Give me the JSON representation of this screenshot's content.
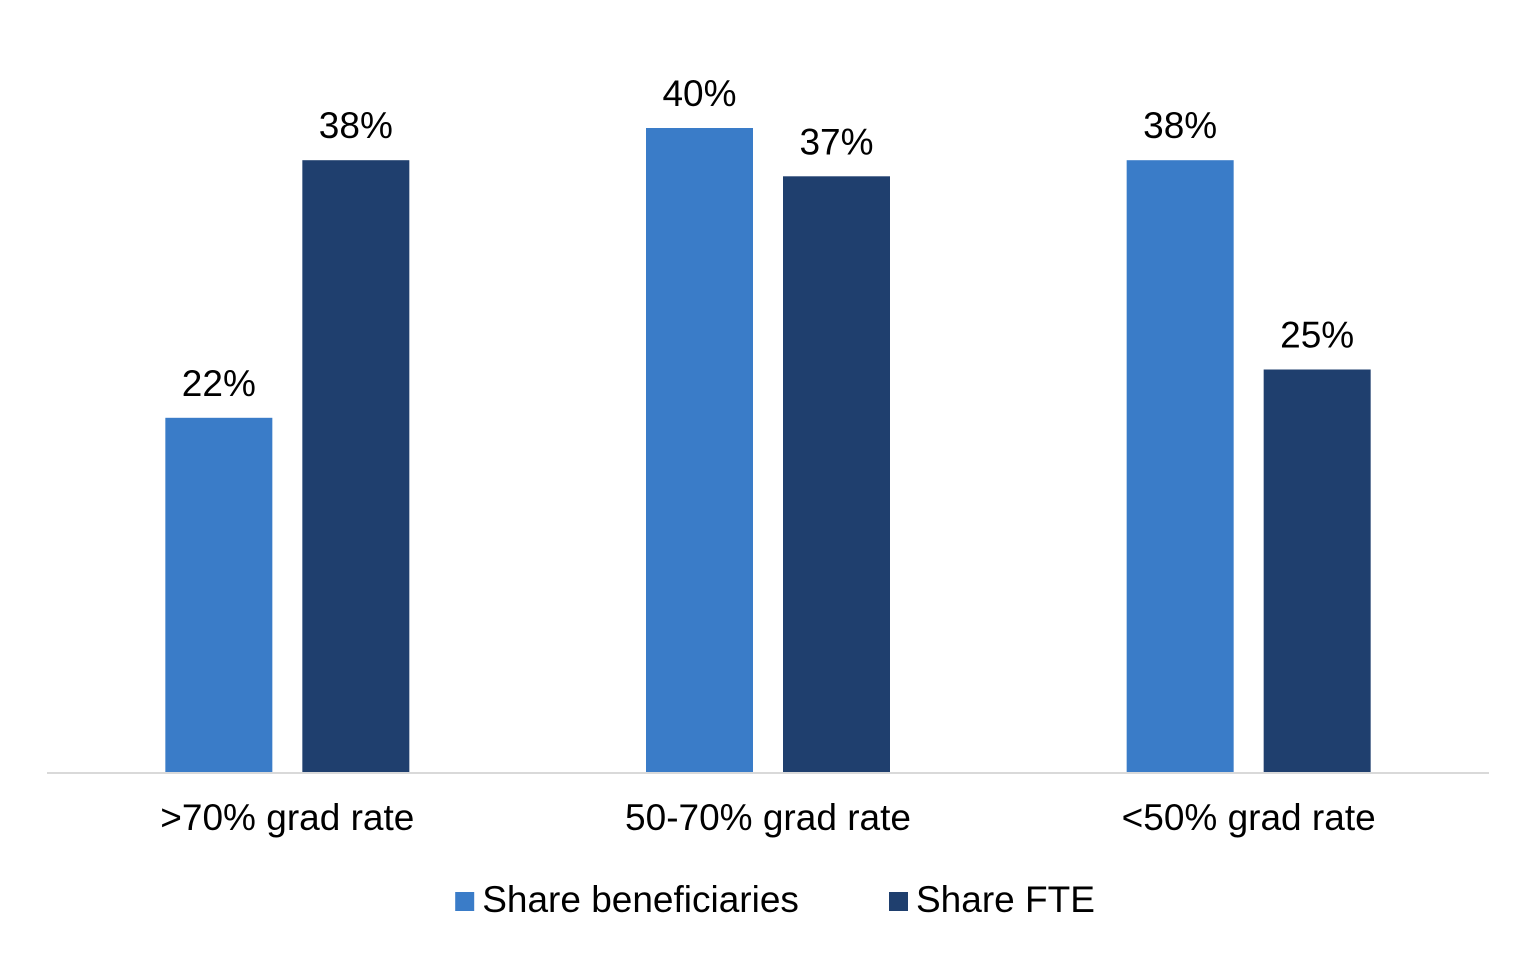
{
  "chart_data": {
    "type": "bar",
    "title": "",
    "xlabel": "",
    "ylabel": "",
    "ylim": [
      0,
      40
    ],
    "grid": false,
    "legend_position": "bottom",
    "categories": [
      ">70% grad rate",
      "50-70% grad rate",
      "<50% grad rate"
    ],
    "series": [
      {
        "name": "Share beneficiaries",
        "color": "#3A7CC8",
        "values": [
          22,
          40,
          38
        ],
        "data_labels": [
          "22%",
          "40%",
          "38%"
        ]
      },
      {
        "name": "Share FTE",
        "color": "#1F3F6E",
        "values": [
          38,
          37,
          25
        ],
        "data_labels": [
          "38%",
          "37%",
          "25%"
        ]
      }
    ],
    "axis_color": "#D9D9D9"
  }
}
